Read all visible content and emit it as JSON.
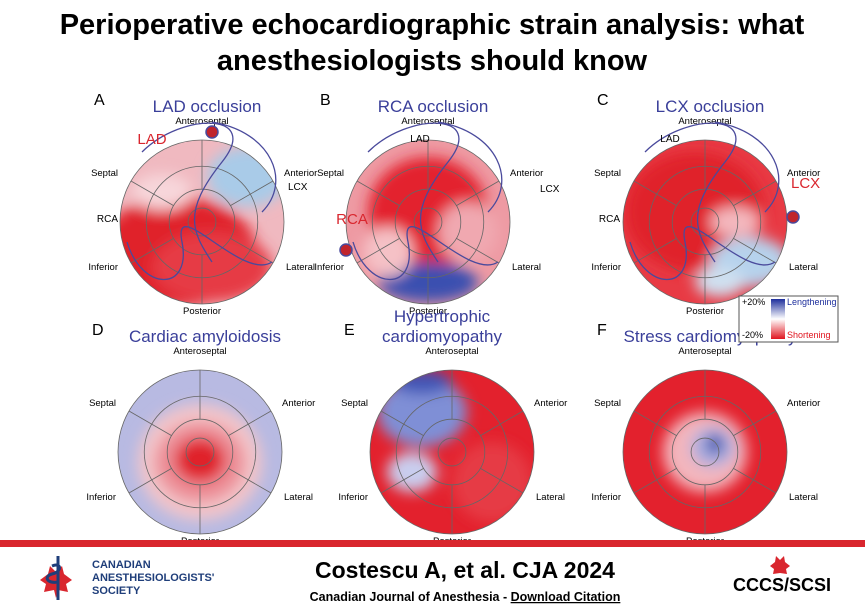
{
  "header": {
    "title": [
      "Perioperative echocardiographic strain analysis: what",
      "anesthesiologists should know"
    ]
  },
  "panels": [
    {
      "letter": "A",
      "title": [
        "LAD occlusion"
      ],
      "segments": [
        "Anteroseptal",
        "Anterior",
        "Lateral",
        "Posterior",
        "Inferior",
        "Septal"
      ],
      "coronaries": [
        {
          "text": "LAD",
          "highlight": true
        },
        {
          "text": "LCX",
          "highlight": false
        },
        {
          "text": "RCA",
          "highlight": false
        }
      ]
    },
    {
      "letter": "B",
      "title": [
        "RCA occlusion"
      ],
      "segments": [
        "Anteroseptal",
        "Anterior",
        "Lateral",
        "Posterior",
        "Inferior",
        "Septal"
      ],
      "coronaries": [
        {
          "text": "LAD",
          "highlight": false
        },
        {
          "text": "LCX",
          "highlight": false
        },
        {
          "text": "RCA",
          "highlight": true
        }
      ]
    },
    {
      "letter": "C",
      "title": [
        "LCX occlusion"
      ],
      "segments": [
        "Anteroseptal",
        "Anterior",
        "Lateral",
        "Posterior",
        "Inferior",
        "Septal"
      ],
      "coronaries": [
        {
          "text": "LAD",
          "highlight": false
        },
        {
          "text": "LCX",
          "highlight": true
        },
        {
          "text": "RCA",
          "highlight": false
        }
      ]
    },
    {
      "letter": "D",
      "title": [
        "Cardiac amyloidosis"
      ],
      "segments": [
        "Anteroseptal",
        "Anterior",
        "Lateral",
        "Posterior",
        "Inferior",
        "Septal"
      ],
      "coronaries": []
    },
    {
      "letter": "E",
      "title": [
        "Hypertrophic",
        "cardiomyopathy"
      ],
      "segments": [
        "Anteroseptal",
        "Anterior",
        "Lateral",
        "Posterior",
        "Inferior",
        "Septal"
      ],
      "coronaries": []
    },
    {
      "letter": "F",
      "title": [
        "Stress cardiomyopathy"
      ],
      "segments": [
        "Anteroseptal",
        "Anterior",
        "Lateral",
        "Posterior",
        "Inferior",
        "Septal"
      ],
      "coronaries": []
    }
  ],
  "legend": {
    "top": "+20%",
    "top_label": "Lengthening",
    "bottom": "-20%",
    "bottom_label": "Shortening"
  },
  "footer": {
    "citation": "Costescu A, et al. CJA 2024",
    "journal": "Canadian Journal of Anesthesia - ",
    "link": "Download Citation",
    "society": [
      "CANADIAN",
      "ANESTHESIOLOGISTS'",
      "SOCIETY"
    ],
    "logo": "CCCS/SCSI"
  }
}
